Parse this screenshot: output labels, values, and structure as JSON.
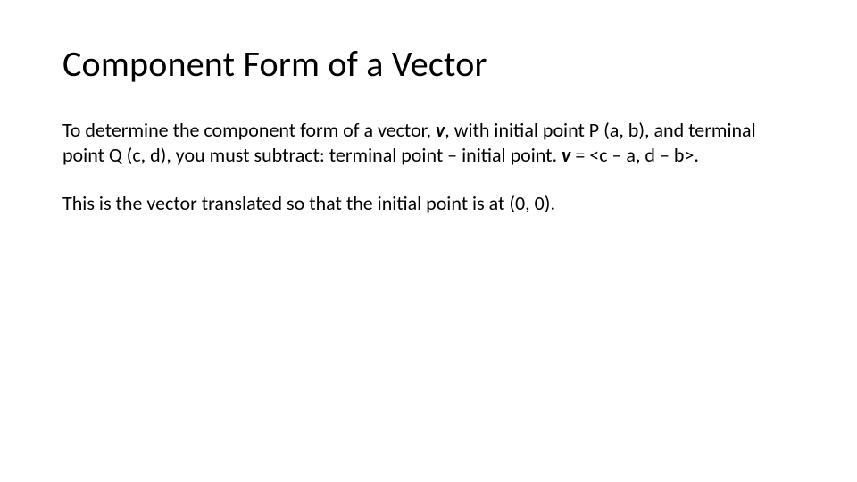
{
  "slide": {
    "title": "Component Form of a Vector",
    "paragraphs": [
      {
        "segments": [
          {
            "text": "To determine the component form of a vector, ",
            "style": "normal"
          },
          {
            "text": "v",
            "style": "bold-italic"
          },
          {
            "text": ", with initial point P (a, b), and terminal point Q (c, d), you must subtract: terminal point – initial point.  ",
            "style": "normal"
          },
          {
            "text": "v",
            "style": "bold-italic"
          },
          {
            "text": " = <c – a, d – b>.",
            "style": "normal"
          }
        ]
      },
      {
        "segments": [
          {
            "text": "This is the vector translated so that the initial point is at (0, 0).",
            "style": "normal"
          }
        ]
      }
    ],
    "title_fontsize": 40,
    "body_fontsize": 22,
    "text_color": "#000000",
    "background_color": "#ffffff"
  }
}
